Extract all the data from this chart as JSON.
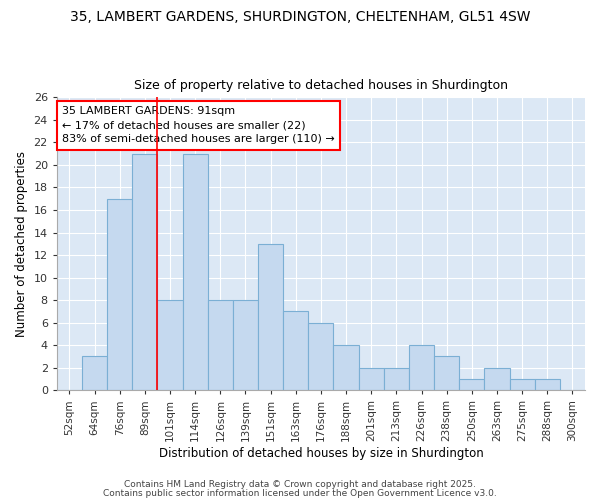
{
  "title1": "35, LAMBERT GARDENS, SHURDINGTON, CHELTENHAM, GL51 4SW",
  "title2": "Size of property relative to detached houses in Shurdington",
  "xlabel": "Distribution of detached houses by size in Shurdington",
  "ylabel": "Number of detached properties",
  "categories": [
    "52sqm",
    "64sqm",
    "76sqm",
    "89sqm",
    "101sqm",
    "114sqm",
    "126sqm",
    "139sqm",
    "151sqm",
    "163sqm",
    "176sqm",
    "188sqm",
    "201sqm",
    "213sqm",
    "226sqm",
    "238sqm",
    "250sqm",
    "263sqm",
    "275sqm",
    "288sqm",
    "300sqm"
  ],
  "values": [
    0,
    3,
    17,
    21,
    8,
    21,
    8,
    8,
    13,
    7,
    6,
    4,
    2,
    2,
    4,
    3,
    1,
    2,
    1,
    1,
    0
  ],
  "bar_color": "#c5d9ef",
  "bar_edge_color": "#7bafd4",
  "red_line_index": 3,
  "annotation_title": "35 LAMBERT GARDENS: 91sqm",
  "annotation_line1": "← 17% of detached houses are smaller (22)",
  "annotation_line2": "83% of semi-detached houses are larger (110) →",
  "ylim": [
    0,
    26
  ],
  "yticks": [
    0,
    2,
    4,
    6,
    8,
    10,
    12,
    14,
    16,
    18,
    20,
    22,
    24,
    26
  ],
  "bg_color": "#dce8f5",
  "fig_bg_color": "#ffffff",
  "grid_color": "#ffffff",
  "footer1": "Contains HM Land Registry data © Crown copyright and database right 2025.",
  "footer2": "Contains public sector information licensed under the Open Government Licence v3.0."
}
